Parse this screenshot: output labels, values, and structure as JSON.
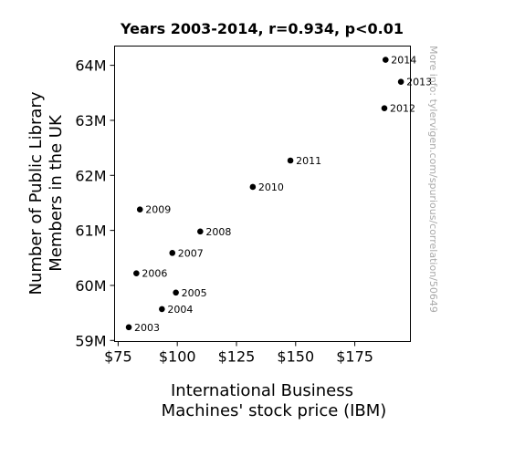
{
  "chart_data": {
    "type": "scatter",
    "title": "Years 2003-2014, r=0.934, p<0.01",
    "xlabel_lines": [
      "International Business",
      "Machines' stock price (IBM)"
    ],
    "ylabel_lines": [
      "Number of Public Library",
      "Members in the UK"
    ],
    "xlim": [
      73.5,
      198.5
    ],
    "ylim": [
      58.98,
      64.35
    ],
    "x_ticks": [
      {
        "value": 75,
        "label": "$75"
      },
      {
        "value": 100,
        "label": "$100"
      },
      {
        "value": 125,
        "label": "$125"
      },
      {
        "value": 150,
        "label": "$150"
      },
      {
        "value": 175,
        "label": "$175"
      }
    ],
    "y_ticks": [
      {
        "value": 59,
        "label": "59M"
      },
      {
        "value": 60,
        "label": "60M"
      },
      {
        "value": 61,
        "label": "61M"
      },
      {
        "value": 62,
        "label": "62M"
      },
      {
        "value": 63,
        "label": "63M"
      },
      {
        "value": 64,
        "label": "64M"
      }
    ],
    "points": [
      {
        "label": "2003",
        "x": 79.5,
        "y": 59.24
      },
      {
        "label": "2004",
        "x": 93.5,
        "y": 59.57
      },
      {
        "label": "2005",
        "x": 99.4,
        "y": 59.87
      },
      {
        "label": "2006",
        "x": 82.7,
        "y": 60.22
      },
      {
        "label": "2007",
        "x": 97.9,
        "y": 60.59
      },
      {
        "label": "2008",
        "x": 109.7,
        "y": 60.98
      },
      {
        "label": "2009",
        "x": 84.2,
        "y": 61.38
      },
      {
        "label": "2010",
        "x": 131.9,
        "y": 61.79
      },
      {
        "label": "2011",
        "x": 147.8,
        "y": 62.27
      },
      {
        "label": "2012",
        "x": 187.5,
        "y": 63.22
      },
      {
        "label": "2013",
        "x": 194.5,
        "y": 63.7
      },
      {
        "label": "2014",
        "x": 188.0,
        "y": 64.1
      }
    ],
    "marker_color": "#000000",
    "grid": false,
    "legend": "none"
  },
  "watermark": "More info: tylervigen.com/spurious/correlation/50649"
}
